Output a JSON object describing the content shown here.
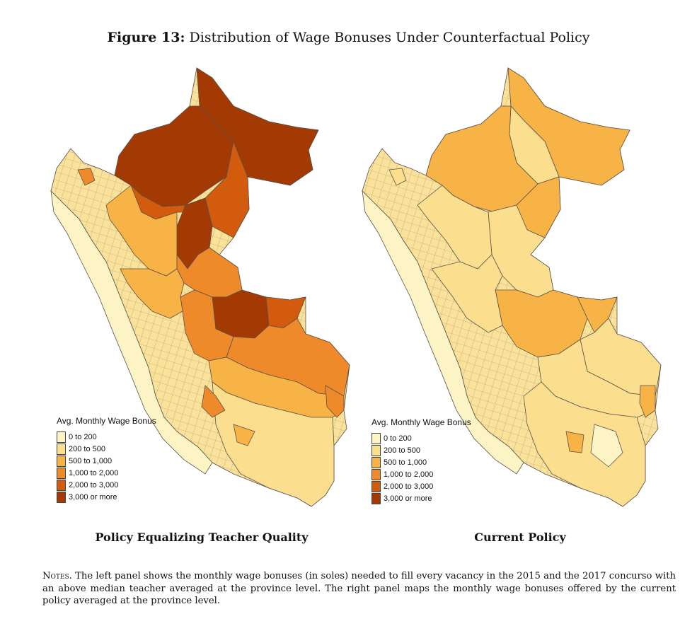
{
  "figure": {
    "label": "Figure 13:",
    "title": "Distribution of Wage Bonuses Under Counterfactual Policy"
  },
  "legend": {
    "title": "Avg. Monthly Wage Bonus",
    "categories": [
      {
        "label": "0 to 200",
        "color": "#fdf4c6"
      },
      {
        "label": "200 to 500",
        "color": "#fbdf8e"
      },
      {
        "label": "500 to 1,000",
        "color": "#f8b346"
      },
      {
        "label": "1,000 to 2,000",
        "color": "#ef8a2a"
      },
      {
        "label": "2,000 to 3,000",
        "color": "#d25b0e"
      },
      {
        "label": "3,000 or more",
        "color": "#a33a04"
      }
    ]
  },
  "panels": {
    "left": {
      "label": "Policy Equalizing Teacher Quality"
    },
    "right": {
      "label": "Current Policy"
    }
  },
  "notes": {
    "lead": "Notes.",
    "text": " The left panel shows the monthly wage bonuses (in soles) needed to fill every vacancy in the 2015 and the 2017 concurso with an above median teacher averaged at the province level. The right panel maps the monthly wage bonuses offered by the current policy averaged at the province level."
  }
}
